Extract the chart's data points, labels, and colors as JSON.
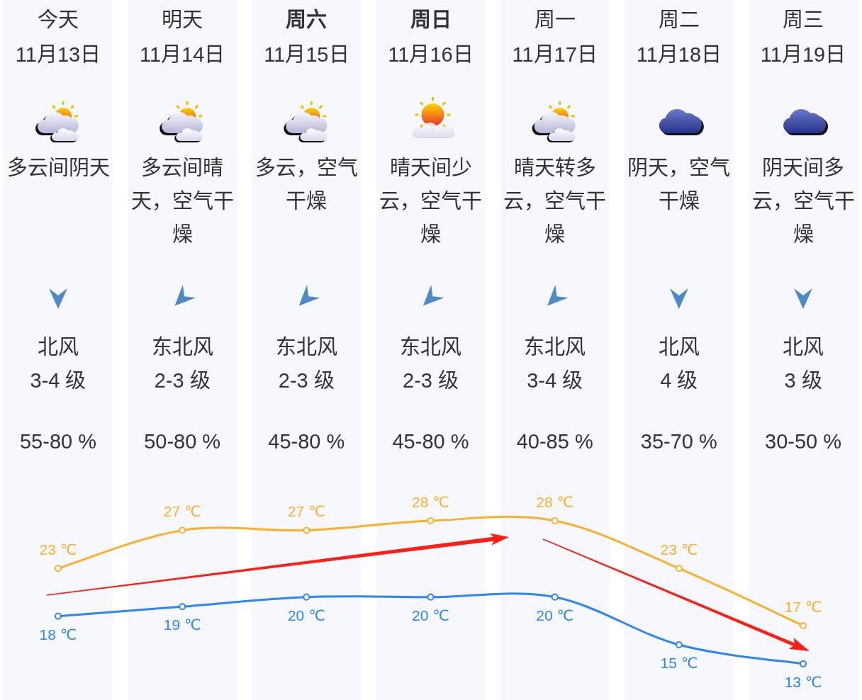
{
  "chart_data": {
    "type": "line",
    "categories": [
      "今天\n11月13日",
      "明天\n11月14日",
      "周六\n11月15日",
      "周日\n11月16日",
      "周一\n11月17日",
      "周二\n11月18日",
      "周三\n11月19日"
    ],
    "series": [
      {
        "color": "#fcb02a",
        "values": [
          23,
          27,
          27,
          28,
          28,
          23,
          17
        ],
        "value_labels": [
          "23 ℃",
          "27 ℃",
          "27 ℃",
          "28 ℃",
          "28 ℃",
          "23 ℃",
          "17 ℃"
        ]
      },
      {
        "color": "#2c86f5",
        "values": [
          18,
          19,
          20,
          20,
          20,
          15,
          13
        ],
        "value_labels": [
          "18 ℃",
          "19 ℃",
          "20 ℃",
          "20 ℃",
          "20 ℃",
          "15 ℃",
          "13 ℃"
        ]
      }
    ],
    "marker": "circle",
    "line_style": "solid",
    "tick_labels": "x",
    "annotations": [
      "多云间阴天",
      "多云间晴天，空气干燥",
      "多云，空气干燥",
      "晴天间少云，空气干燥",
      "晴天转多云，空气干燥",
      "阴天，空气干燥",
      "阴天间多云，空气干燥",
      "北风",
      "东北风",
      "东北风",
      "东北风",
      "东北风",
      "北风",
      "北风",
      "3-4 级",
      "2-3 级",
      "2-3 级",
      "2-3 级",
      "3-4 级",
      "4 级",
      "3 级",
      "55-80 %",
      "50-80 %",
      "45-80 %",
      "45-80 %",
      "40-85 %",
      "35-70 %",
      "30-50 %"
    ]
  }
}
